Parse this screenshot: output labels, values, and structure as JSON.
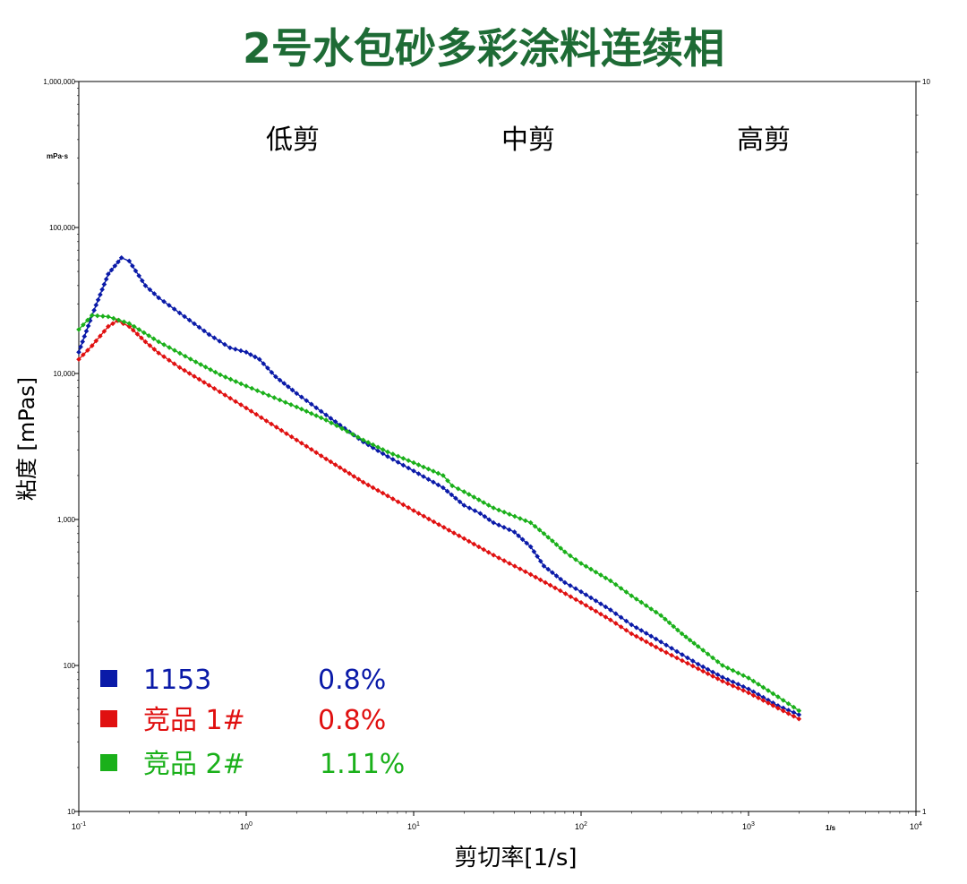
{
  "chart_data": {
    "type": "line",
    "title": "2号水包砂多彩涂料连续相",
    "xlabel": "剪切率[1/s]",
    "ylabel": "粘度 [mPas]",
    "y_unit_label": "mPa·s",
    "x_unit_label": "1/s",
    "x_scale": "log",
    "y_scale": "log",
    "xlim": [
      0.1,
      10000
    ],
    "ylim": [
      10,
      1000000
    ],
    "x_tick_labels": [
      {
        "base": "10",
        "exp": "-1"
      },
      {
        "base": "10",
        "exp": "0"
      },
      {
        "base": "10",
        "exp": "1"
      },
      {
        "base": "10",
        "exp": "2"
      },
      {
        "base": "10",
        "exp": "3"
      },
      {
        "base": "10",
        "exp": "4"
      }
    ],
    "y_tick_labels": [
      "10",
      "100",
      "1,000",
      "10,000",
      "100,000",
      "1,000,000"
    ],
    "right_axis_tick_labels": [
      "1",
      "10"
    ],
    "region_labels": [
      "低剪",
      "中剪",
      "高剪"
    ],
    "grid": false,
    "legend_position": "bottom-left",
    "series": [
      {
        "name": "1153",
        "note": "0.8%",
        "color": "#0a1aa8",
        "points": [
          [
            0.1,
            14000
          ],
          [
            0.12,
            25000
          ],
          [
            0.15,
            48000
          ],
          [
            0.18,
            62000
          ],
          [
            0.2,
            59000
          ],
          [
            0.25,
            40000
          ],
          [
            0.3,
            33000
          ],
          [
            0.4,
            26000
          ],
          [
            0.6,
            18500
          ],
          [
            0.8,
            15000
          ],
          [
            1.0,
            14000
          ],
          [
            1.2,
            12500
          ],
          [
            1.5,
            9500
          ],
          [
            2,
            7300
          ],
          [
            3,
            5200
          ],
          [
            5,
            3400
          ],
          [
            7,
            2700
          ],
          [
            10,
            2150
          ],
          [
            15,
            1650
          ],
          [
            20,
            1250
          ],
          [
            25,
            1100
          ],
          [
            30,
            950
          ],
          [
            40,
            820
          ],
          [
            50,
            650
          ],
          [
            60,
            480
          ],
          [
            80,
            370
          ],
          [
            100,
            320
          ],
          [
            150,
            240
          ],
          [
            200,
            190
          ],
          [
            300,
            145
          ],
          [
            500,
            102
          ],
          [
            700,
            83
          ],
          [
            1000,
            69
          ],
          [
            1500,
            53
          ],
          [
            2000,
            46
          ]
        ]
      },
      {
        "name": "竞品 1#",
        "note": "0.8%",
        "color": "#e01010",
        "points": [
          [
            0.1,
            12500
          ],
          [
            0.12,
            15500
          ],
          [
            0.15,
            21000
          ],
          [
            0.17,
            23000
          ],
          [
            0.2,
            21000
          ],
          [
            0.25,
            16500
          ],
          [
            0.3,
            13800
          ],
          [
            0.4,
            11000
          ],
          [
            0.6,
            8300
          ],
          [
            1.0,
            5800
          ],
          [
            2,
            3500
          ],
          [
            3,
            2600
          ],
          [
            5,
            1800
          ],
          [
            7,
            1450
          ],
          [
            10,
            1150
          ],
          [
            20,
            740
          ],
          [
            30,
            570
          ],
          [
            50,
            420
          ],
          [
            70,
            340
          ],
          [
            100,
            270
          ],
          [
            150,
            205
          ],
          [
            200,
            165
          ],
          [
            300,
            128
          ],
          [
            500,
            95
          ],
          [
            700,
            78
          ],
          [
            1000,
            65
          ],
          [
            1500,
            51
          ],
          [
            2000,
            43
          ]
        ]
      },
      {
        "name": "竞品 2#",
        "note": "1.11%",
        "color": "#1ab01a",
        "points": [
          [
            0.1,
            20000
          ],
          [
            0.12,
            25000
          ],
          [
            0.15,
            24500
          ],
          [
            0.2,
            22000
          ],
          [
            0.3,
            16500
          ],
          [
            0.5,
            12000
          ],
          [
            0.7,
            9800
          ],
          [
            1.0,
            8200
          ],
          [
            2,
            5900
          ],
          [
            3,
            4800
          ],
          [
            5,
            3500
          ],
          [
            7,
            2900
          ],
          [
            10,
            2450
          ],
          [
            15,
            2000
          ],
          [
            17,
            1700
          ],
          [
            20,
            1550
          ],
          [
            30,
            1200
          ],
          [
            50,
            950
          ],
          [
            60,
            800
          ],
          [
            80,
            600
          ],
          [
            100,
            500
          ],
          [
            150,
            380
          ],
          [
            200,
            300
          ],
          [
            300,
            220
          ],
          [
            400,
            165
          ],
          [
            500,
            135
          ],
          [
            700,
            100
          ],
          [
            1000,
            82
          ],
          [
            1500,
            61
          ],
          [
            2000,
            49
          ]
        ]
      }
    ]
  }
}
